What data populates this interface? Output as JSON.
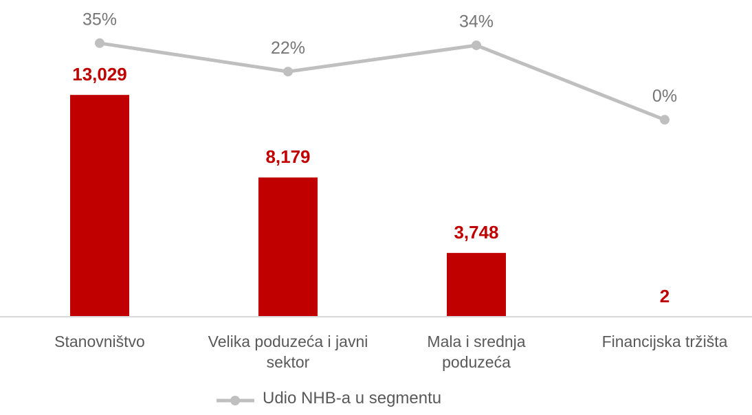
{
  "chart_data": {
    "type": "bar",
    "categories": [
      "Stanovništvo",
      "Velika poduzeća i javni sektor",
      "Mala i srednja poduzeća",
      "Financijska tržišta"
    ],
    "series": [
      {
        "type": "bar",
        "color": "#c00000",
        "values": [
          13029,
          8179,
          3748,
          2
        ],
        "value_labels": [
          "13,029",
          "8,179",
          "3,748",
          "2"
        ]
      },
      {
        "type": "line",
        "name": "Udio NHB-a u segmentu",
        "color": "#bfbfbf",
        "axis": "y2",
        "values": [
          35,
          22,
          34,
          0
        ],
        "value_labels": [
          "35%",
          "22%",
          "34%",
          "0%"
        ]
      }
    ],
    "ylim": [
      0,
      18000
    ],
    "y2lim": [
      -90,
      50
    ],
    "legend": "bottom"
  }
}
